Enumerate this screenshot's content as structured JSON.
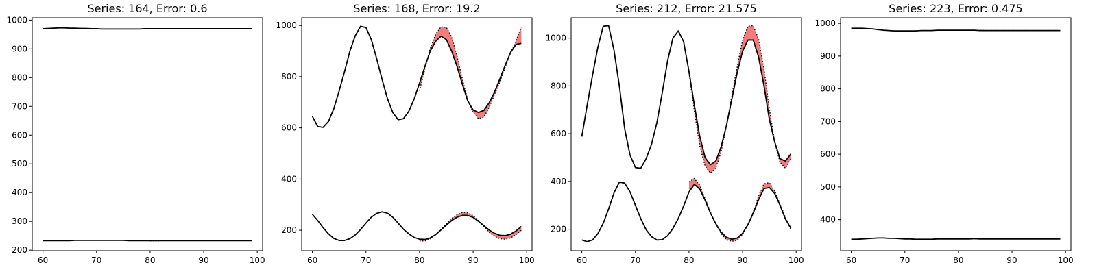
{
  "chart_data": [
    {
      "type": "line",
      "title": "Series: 164, Error: 0.6",
      "xlim": [
        58,
        101
      ],
      "ylim": [
        198,
        1008
      ],
      "xticks": [
        60,
        70,
        80,
        90,
        100
      ],
      "yticks": [
        200,
        300,
        400,
        500,
        600,
        700,
        800,
        900,
        1000
      ],
      "x": [
        60,
        61,
        62,
        63,
        64,
        65,
        66,
        67,
        68,
        69,
        70,
        71,
        72,
        73,
        74,
        75,
        76,
        77,
        78,
        79,
        80,
        81,
        82,
        83,
        84,
        85,
        86,
        87,
        88,
        89,
        90,
        91,
        92,
        93,
        94,
        95,
        96,
        97,
        98,
        99
      ],
      "forecast_start": 80,
      "series": [
        {
          "values": [
            970,
            971,
            972,
            973,
            973,
            972,
            972,
            971,
            971,
            970,
            970,
            969,
            969,
            969,
            969,
            969,
            969,
            969,
            969,
            970,
            970,
            970,
            970,
            970,
            970,
            970,
            970,
            970,
            970,
            970,
            970,
            970,
            970,
            970,
            970,
            970,
            970,
            970,
            970,
            970
          ],
          "predicted": [
            970,
            970,
            970,
            970,
            970,
            970,
            970,
            970,
            970,
            970,
            970,
            970,
            970,
            970,
            970,
            970,
            970,
            970,
            970,
            970
          ]
        },
        {
          "values": [
            233,
            233,
            233,
            233,
            233,
            233,
            234,
            234,
            234,
            234,
            234,
            234,
            234,
            234,
            234,
            234,
            233,
            233,
            233,
            233,
            233,
            233,
            233,
            233,
            233,
            233,
            233,
            233,
            233,
            233,
            233,
            233,
            233,
            233,
            233,
            233,
            233,
            233,
            233,
            233
          ],
          "predicted": [
            232,
            232,
            233,
            233,
            234,
            234,
            234,
            234,
            234,
            234,
            234,
            234,
            234,
            234,
            233,
            233,
            233,
            233,
            233,
            233
          ]
        }
      ]
    },
    {
      "type": "line",
      "title": "Series: 168, Error: 19.2",
      "xlim": [
        58,
        101
      ],
      "ylim": [
        120,
        1030
      ],
      "xticks": [
        60,
        70,
        80,
        90,
        100
      ],
      "yticks": [
        200,
        400,
        600,
        800,
        1000
      ],
      "x": [
        60,
        61,
        62,
        63,
        64,
        65,
        66,
        67,
        68,
        69,
        70,
        71,
        72,
        73,
        74,
        75,
        76,
        77,
        78,
        79,
        80,
        81,
        82,
        83,
        84,
        85,
        86,
        87,
        88,
        89,
        90,
        91,
        92,
        93,
        94,
        95,
        96,
        97,
        98,
        99
      ],
      "forecast_start": 80,
      "series": [
        {
          "values": [
            645,
            605,
            602,
            625,
            675,
            745,
            820,
            900,
            960,
            997,
            992,
            945,
            870,
            790,
            715,
            660,
            632,
            636,
            665,
            713,
            775,
            840,
            900,
            938,
            958,
            945,
            900,
            840,
            770,
            705,
            670,
            660,
            668,
            698,
            740,
            792,
            845,
            895,
            926,
            930
          ],
          "predicted": [
            745,
            830,
            910,
            965,
            995,
            993,
            955,
            880,
            790,
            710,
            660,
            636,
            642,
            680,
            730,
            780,
            838,
            892,
            940,
            995
          ]
        },
        {
          "values": [
            262,
            238,
            210,
            186,
            168,
            160,
            160,
            167,
            182,
            203,
            228,
            251,
            266,
            272,
            267,
            251,
            228,
            204,
            186,
            172,
            165,
            164,
            170,
            183,
            201,
            220,
            238,
            251,
            258,
            258,
            250,
            235,
            218,
            201,
            188,
            180,
            179,
            185,
            197,
            215
          ],
          "predicted": [
            158,
            158,
            166,
            182,
            202,
            225,
            246,
            261,
            270,
            268,
            257,
            238,
            214,
            192,
            176,
            167,
            165,
            170,
            183,
            200
          ]
        }
      ]
    },
    {
      "type": "line",
      "title": "Series: 212, Error: 21.575",
      "xlim": [
        58,
        101
      ],
      "ylim": [
        110,
        1085
      ],
      "xticks": [
        60,
        70,
        80,
        90,
        100
      ],
      "yticks": [
        200,
        400,
        600,
        800,
        1000
      ],
      "x": [
        60,
        61,
        62,
        63,
        64,
        65,
        66,
        67,
        68,
        69,
        70,
        71,
        72,
        73,
        74,
        75,
        76,
        77,
        78,
        79,
        80,
        81,
        82,
        83,
        84,
        85,
        86,
        87,
        88,
        89,
        90,
        91,
        92,
        93,
        94,
        95,
        96,
        97,
        98,
        99
      ],
      "forecast_start": 80,
      "series": [
        {
          "values": [
            588,
            720,
            845,
            963,
            1050,
            1052,
            950,
            800,
            620,
            510,
            458,
            455,
            495,
            555,
            645,
            770,
            905,
            1000,
            1030,
            985,
            860,
            720,
            590,
            500,
            470,
            485,
            545,
            635,
            745,
            855,
            945,
            992,
            992,
            920,
            800,
            660,
            565,
            495,
            485,
            515
          ],
          "predicted": [
            855,
            695,
            550,
            465,
            435,
            455,
            525,
            630,
            760,
            880,
            990,
            1050,
            1052,
            995,
            870,
            705,
            565,
            480,
            455,
            495
          ]
        },
        {
          "values": [
            155,
            148,
            155,
            182,
            225,
            285,
            352,
            397,
            393,
            356,
            300,
            244,
            198,
            169,
            155,
            156,
            173,
            203,
            245,
            297,
            356,
            388,
            368,
            322,
            268,
            223,
            188,
            166,
            158,
            163,
            183,
            219,
            268,
            324,
            370,
            375,
            349,
            300,
            243,
            205
          ],
          "predicted": [
            398,
            412,
            384,
            330,
            272,
            220,
            182,
            156,
            149,
            153,
            178,
            220,
            272,
            340,
            390,
            395,
            360,
            305,
            250,
            200
          ]
        }
      ]
    },
    {
      "type": "line",
      "title": "Series: 223, Error: 0.475",
      "xlim": [
        58,
        101
      ],
      "ylim": [
        305,
        1017
      ],
      "xticks": [
        60,
        70,
        80,
        90,
        100
      ],
      "yticks": [
        400,
        500,
        600,
        700,
        800,
        900,
        1000
      ],
      "x": [
        60,
        61,
        62,
        63,
        64,
        65,
        66,
        67,
        68,
        69,
        70,
        71,
        72,
        73,
        74,
        75,
        76,
        77,
        78,
        79,
        80,
        81,
        82,
        83,
        84,
        85,
        86,
        87,
        88,
        89,
        90,
        91,
        92,
        93,
        94,
        95,
        96,
        97,
        98,
        99
      ],
      "forecast_start": 80,
      "series": [
        {
          "values": [
            985,
            985,
            985,
            984,
            983,
            981,
            979,
            978,
            977,
            977,
            977,
            977,
            977,
            978,
            978,
            978,
            979,
            979,
            979,
            979,
            979,
            979,
            979,
            979,
            978,
            978,
            978,
            978,
            978,
            978,
            978,
            978,
            978,
            978,
            978,
            978,
            978,
            978,
            978,
            978
          ],
          "predicted": [
            979,
            979,
            979,
            979,
            979,
            978,
            978,
            978,
            978,
            978,
            978,
            978,
            978,
            978,
            978,
            978,
            978,
            978,
            978,
            978
          ]
        },
        {
          "values": [
            340,
            340,
            341,
            342,
            343,
            344,
            344,
            343,
            343,
            342,
            341,
            341,
            340,
            340,
            340,
            340,
            341,
            341,
            341,
            341,
            341,
            341,
            341,
            342,
            341,
            341,
            341,
            341,
            341,
            341,
            341,
            341,
            341,
            341,
            341,
            341,
            341,
            341,
            341,
            341
          ],
          "predicted": [
            341,
            341,
            341,
            341,
            341,
            341,
            341,
            341,
            341,
            341,
            341,
            341,
            341,
            341,
            341,
            341,
            341,
            341,
            341,
            341
          ]
        }
      ]
    }
  ],
  "colors": {
    "line": "#000000",
    "error_fill": "#f47c7c",
    "axes": "#000000",
    "background": "#ffffff"
  }
}
